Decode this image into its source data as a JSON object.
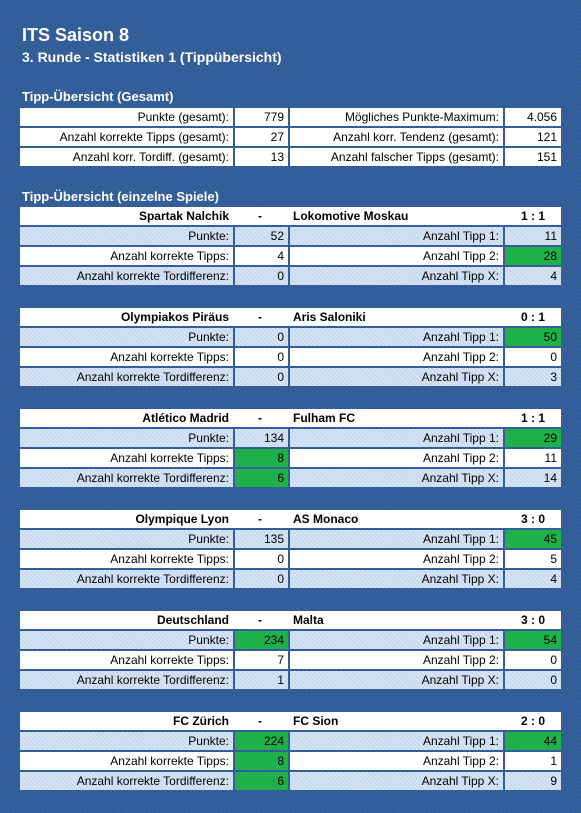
{
  "header": {
    "title": "ITS Saison 8",
    "subtitle": "3. Runde - Statistiken 1 (Tippübersicht)"
  },
  "summary": {
    "title": "Tipp-Übersicht (Gesamt)",
    "rows": [
      [
        "Punkte (gesamt):",
        "779",
        "Mögliches Punkte-Maximum:",
        "4.056"
      ],
      [
        "Anzahl korrekte Tipps (gesamt):",
        "27",
        "Anzahl korr. Tendenz (gesamt):",
        "121"
      ],
      [
        "Anzahl korr. Tordiff. (gesamt):",
        "13",
        "Anzahl falscher Tipps (gesamt):",
        "151"
      ]
    ]
  },
  "matches_title": "Tipp-Übersicht (einzelne Spiele)",
  "match_labels": {
    "separator": "-",
    "left": [
      "Punkte:",
      "Anzahl korrekte Tipps:",
      "Anzahl korrekte Tordifferenz:"
    ],
    "right": [
      "Anzahl Tipp 1:",
      "Anzahl Tipp 2:",
      "Anzahl Tipp X:"
    ]
  },
  "matches": [
    {
      "home": "Spartak Nalchik",
      "away": "Lokomotive Moskau",
      "score": "1 : 1",
      "left": [
        "52",
        "4",
        "0"
      ],
      "right": [
        "11",
        "28",
        "4"
      ],
      "highlight": [
        [
          1,
          "right"
        ]
      ]
    },
    {
      "home": "Olympiakos Piräus",
      "away": "Aris Saloniki",
      "score": "0 : 1",
      "left": [
        "0",
        "0",
        "0"
      ],
      "right": [
        "50",
        "0",
        "3"
      ],
      "highlight": [
        [
          0,
          "right"
        ]
      ]
    },
    {
      "home": "Atlético Madrid",
      "away": "Fulham FC",
      "score": "1 : 1",
      "left": [
        "134",
        "8",
        "6"
      ],
      "right": [
        "29",
        "11",
        "14"
      ],
      "highlight": [
        [
          1,
          "left"
        ],
        [
          2,
          "left"
        ],
        [
          0,
          "right"
        ]
      ]
    },
    {
      "home": "Olympique Lyon",
      "away": "AS Monaco",
      "score": "3 : 0",
      "left": [
        "135",
        "0",
        "0"
      ],
      "right": [
        "45",
        "5",
        "4"
      ],
      "highlight": [
        [
          0,
          "right"
        ]
      ]
    },
    {
      "home": "Deutschland",
      "away": "Malta",
      "score": "3 : 0",
      "left": [
        "234",
        "7",
        "1"
      ],
      "right": [
        "54",
        "0",
        "0"
      ],
      "highlight": [
        [
          0,
          "left"
        ],
        [
          0,
          "right"
        ]
      ]
    },
    {
      "home": "FC Zürich",
      "away": "FC Sion",
      "score": "2 : 0",
      "left": [
        "224",
        "8",
        "6"
      ],
      "right": [
        "44",
        "1",
        "9"
      ],
      "highlight": [
        [
          0,
          "left"
        ],
        [
          1,
          "left"
        ],
        [
          2,
          "left"
        ],
        [
          0,
          "right"
        ]
      ]
    }
  ]
}
